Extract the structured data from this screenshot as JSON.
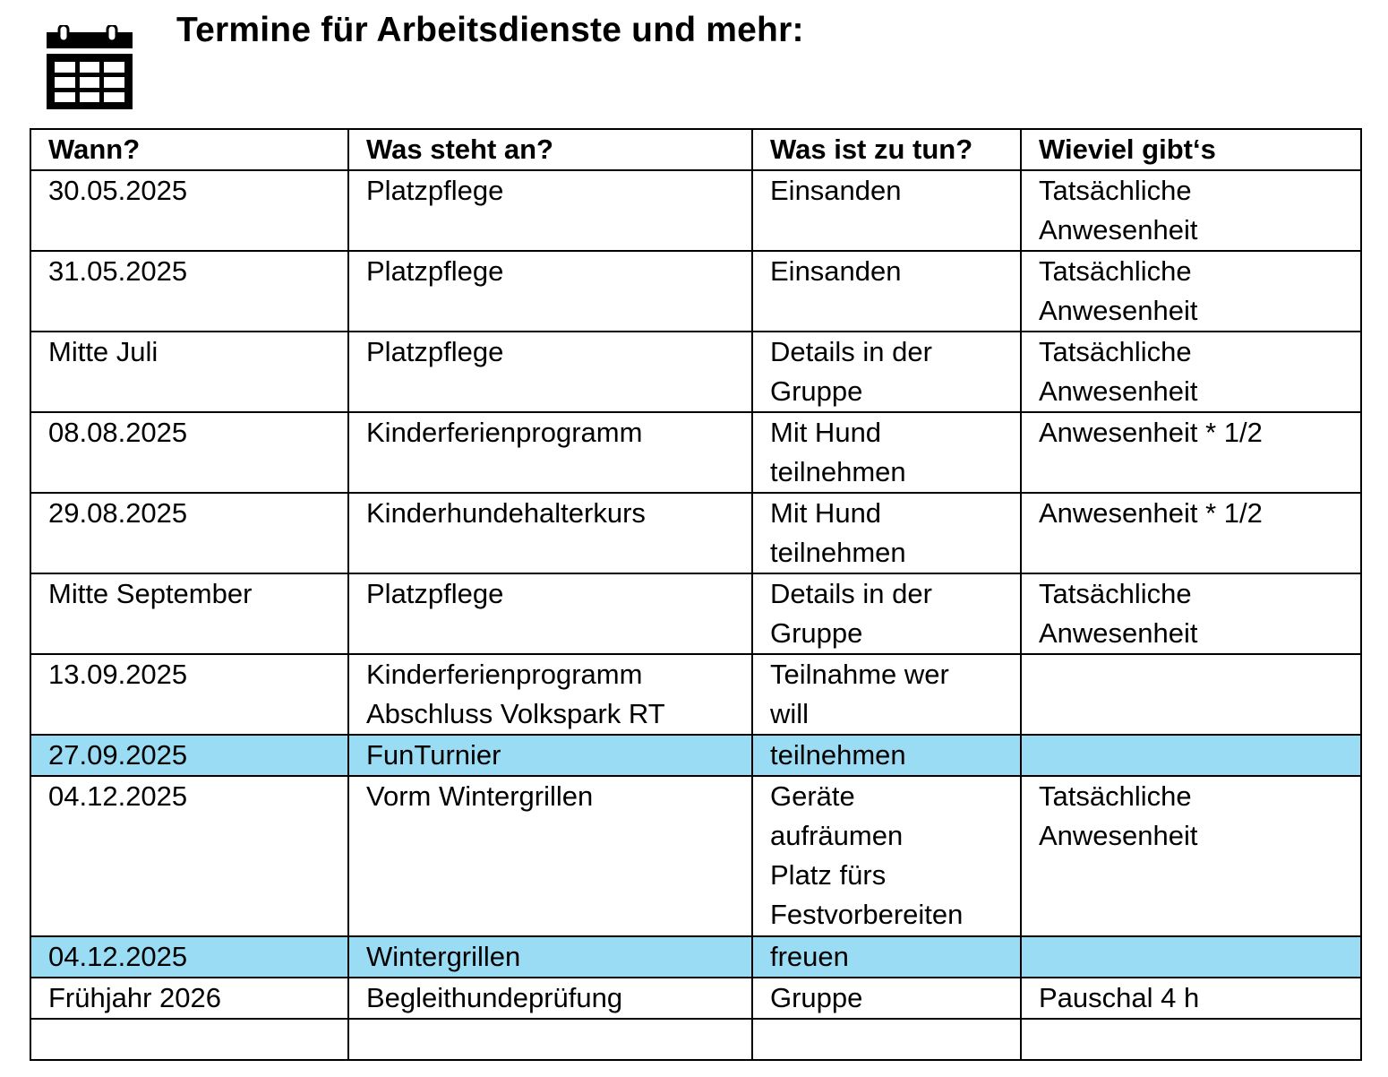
{
  "header": {
    "icon": "calendar-icon",
    "title": "Termine für Arbeitsdienste und mehr:"
  },
  "table": {
    "columns": [
      "Wann?",
      "Was steht an?",
      "Was ist zu tun?",
      "Wieviel gibt‘s"
    ],
    "highlight_color": "#99dcf4",
    "rows": [
      {
        "cells": [
          "30.05.2025",
          "Platzpflege",
          "Einsanden",
          "Tatsächliche\nAnwesenheit"
        ],
        "highlight": false
      },
      {
        "cells": [
          "31.05.2025",
          "Platzpflege",
          "Einsanden",
          "Tatsächliche\nAnwesenheit"
        ],
        "highlight": false
      },
      {
        "cells": [
          "Mitte Juli",
          "Platzpflege",
          "Details in der\nGruppe",
          "Tatsächliche\nAnwesenheit"
        ],
        "highlight": false
      },
      {
        "cells": [
          "08.08.2025",
          "Kinderferienprogramm",
          "Mit Hund\nteilnehmen",
          "Anwesenheit * 1/2"
        ],
        "highlight": false
      },
      {
        "cells": [
          "29.08.2025",
          "Kinderhundehalterkurs",
          "Mit Hund\nteilnehmen",
          "Anwesenheit * 1/2"
        ],
        "highlight": false
      },
      {
        "cells": [
          "Mitte September",
          "Platzpflege",
          "Details in der\nGruppe",
          "Tatsächliche\nAnwesenheit"
        ],
        "highlight": false
      },
      {
        "cells": [
          "13.09.2025",
          "Kinderferienprogramm\nAbschluss Volkspark RT",
          "Teilnahme wer\nwill",
          ""
        ],
        "highlight": false
      },
      {
        "cells": [
          "27.09.2025",
          "FunTurnier",
          "teilnehmen",
          ""
        ],
        "highlight": true
      },
      {
        "cells": [
          "04.12.2025",
          "Vorm Wintergrillen",
          "Geräte\naufräumen\nPlatz fürs\nFestvorbereiten",
          "Tatsächliche\nAnwesenheit"
        ],
        "highlight": false
      },
      {
        "cells": [
          "04.12.2025",
          "Wintergrillen",
          "freuen",
          ""
        ],
        "highlight": true
      },
      {
        "cells": [
          "Frühjahr 2026",
          "Begleithundeprüfung",
          "Gruppe",
          "Pauschal 4 h"
        ],
        "highlight": false
      },
      {
        "cells": [
          "",
          "",
          "",
          ""
        ],
        "highlight": false
      }
    ]
  }
}
